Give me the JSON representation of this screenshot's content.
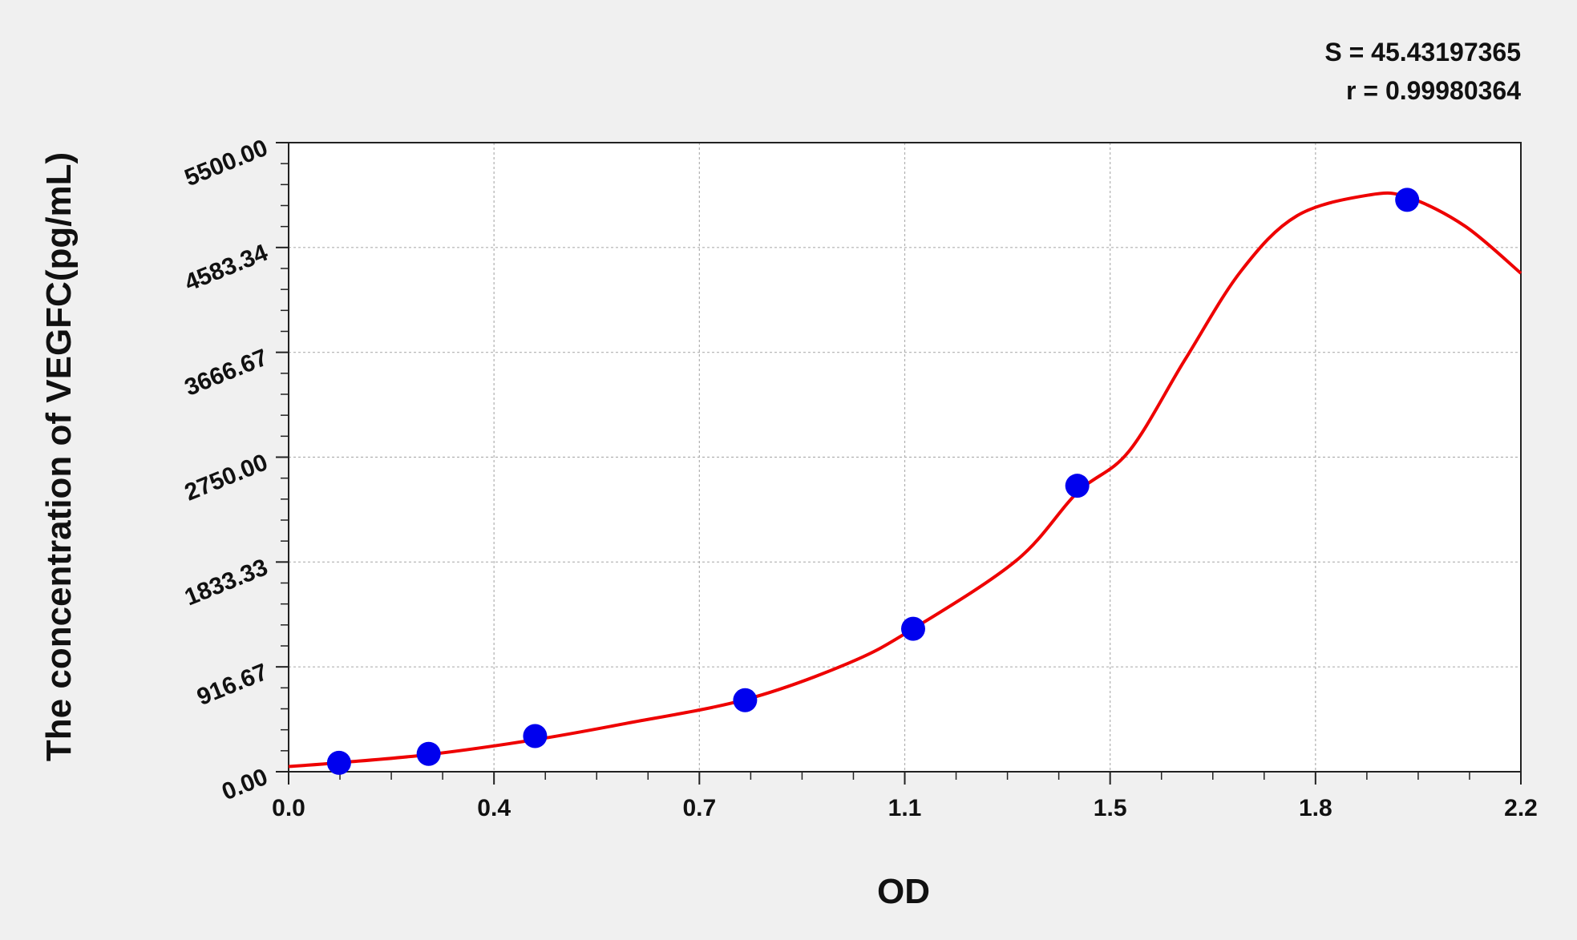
{
  "chart_data": {
    "type": "scatter",
    "title": "",
    "xlabel": "OD",
    "ylabel": "The concentration of VEGFC(pg/mL)",
    "xlim": [
      0,
      2.2
    ],
    "ylim": [
      0,
      5500
    ],
    "x_ticks": [
      "0.0",
      "0.4",
      "0.7",
      "1.1",
      "1.5",
      "1.8",
      "2.2"
    ],
    "y_ticks": [
      "0.00",
      "916.67",
      "1833.33",
      "2750.00",
      "3666.67",
      "4583.34",
      "5500.00"
    ],
    "grid": true,
    "annotations": [
      "S = 45.43197365",
      "r = 0.99980364"
    ],
    "series": [
      {
        "type": "scatter",
        "color": "#0000ee",
        "points": [
          [
            0.09,
            78
          ],
          [
            0.25,
            156
          ],
          [
            0.44,
            312
          ],
          [
            0.815,
            625
          ],
          [
            1.115,
            1250
          ],
          [
            1.408,
            2500
          ],
          [
            1.997,
            5000
          ]
        ]
      },
      {
        "type": "line",
        "color": "#ee0000",
        "points": [
          [
            0,
            45
          ],
          [
            0.09,
            79
          ],
          [
            0.25,
            150
          ],
          [
            0.44,
            280
          ],
          [
            0.6,
            420
          ],
          [
            0.815,
            630
          ],
          [
            1.0,
            950
          ],
          [
            1.115,
            1250
          ],
          [
            1.3,
            1850
          ],
          [
            1.408,
            2440
          ],
          [
            1.5,
            2800
          ],
          [
            1.6,
            3600
          ],
          [
            1.7,
            4375
          ],
          [
            1.8,
            4860
          ],
          [
            1.93,
            5043
          ],
          [
            2.0,
            5020
          ],
          [
            2.1,
            4771
          ],
          [
            2.2,
            4358
          ]
        ]
      }
    ]
  }
}
